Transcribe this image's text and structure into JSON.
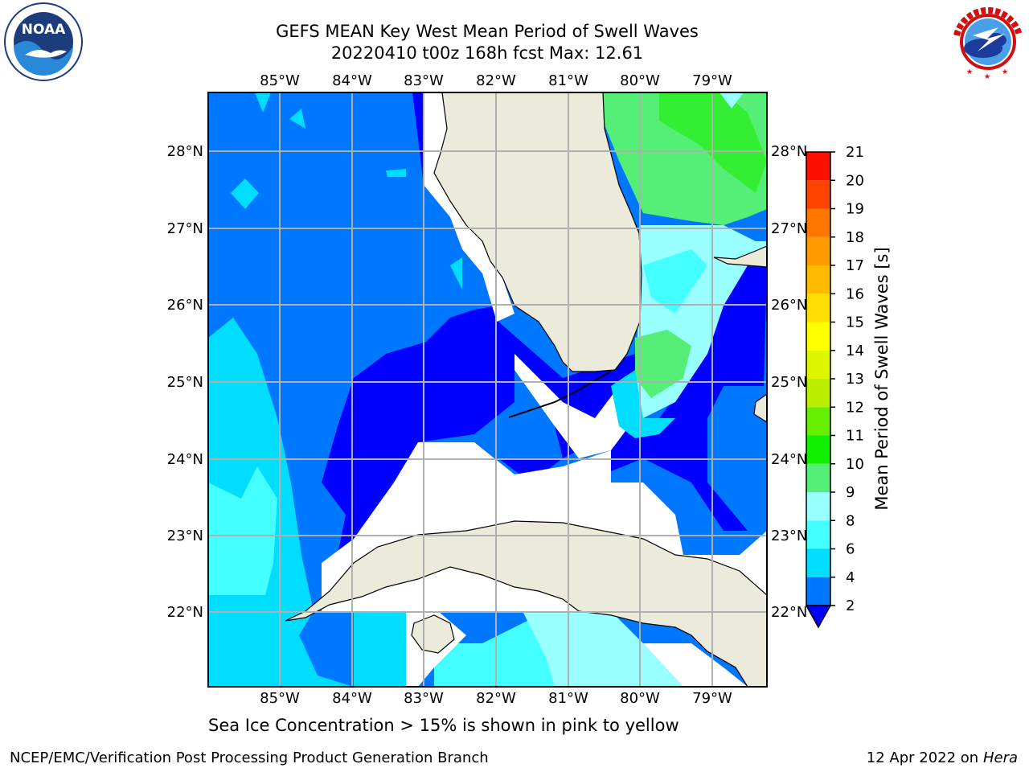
{
  "header": {
    "title_line1": "GEFS MEAN Key West Mean Period of Swell Waves",
    "title_line2": "20220410 t00z 168h fcst   Max: 12.61"
  },
  "logos": {
    "left": {
      "text": "NOAA",
      "ring_text": "NATIONAL OCEANIC AND ATMOSPHERIC ADMINISTRATION · U.S. DEPARTMENT OF COMMERCE",
      "icon": "noaa-logo"
    },
    "right": {
      "ring_text": "NATIONAL WEATHER SERVICE",
      "icon": "nws-logo"
    }
  },
  "map": {
    "lon_labels": [
      "85°W",
      "84°W",
      "83°W",
      "82°W",
      "81°W",
      "80°W",
      "79°W"
    ],
    "lat_labels": [
      "28°N",
      "27°N",
      "26°N",
      "25°N",
      "24°N",
      "23°N",
      "22°N"
    ],
    "land_color": "#ecebdb",
    "grid_color": "#b0b0b0"
  },
  "colorbar": {
    "label": "Mean Period of Swell Waves [s]",
    "ticks": [
      "2",
      "4",
      "6",
      "8",
      "9",
      "10",
      "11",
      "12",
      "13",
      "14",
      "15",
      "16",
      "17",
      "18",
      "19",
      "20",
      "21"
    ],
    "under_color": "#0000ff",
    "colors": [
      "#0077ff",
      "#00ddff",
      "#44ffff",
      "#99ffff",
      "#55ee77",
      "#11ee00",
      "#66ee00",
      "#bbee00",
      "#ddf600",
      "#ffff00",
      "#ffdd00",
      "#ffbb00",
      "#ff9900",
      "#ff7700",
      "#ff4400",
      "#ff1100"
    ]
  },
  "note": "Sea Ice Concentration > 15% is shown in pink to yellow",
  "footer": {
    "left": "NCEP/EMC/Verification Post Processing Product Generation Branch",
    "date": "12 Apr 2022 on ",
    "host": "Hera"
  }
}
